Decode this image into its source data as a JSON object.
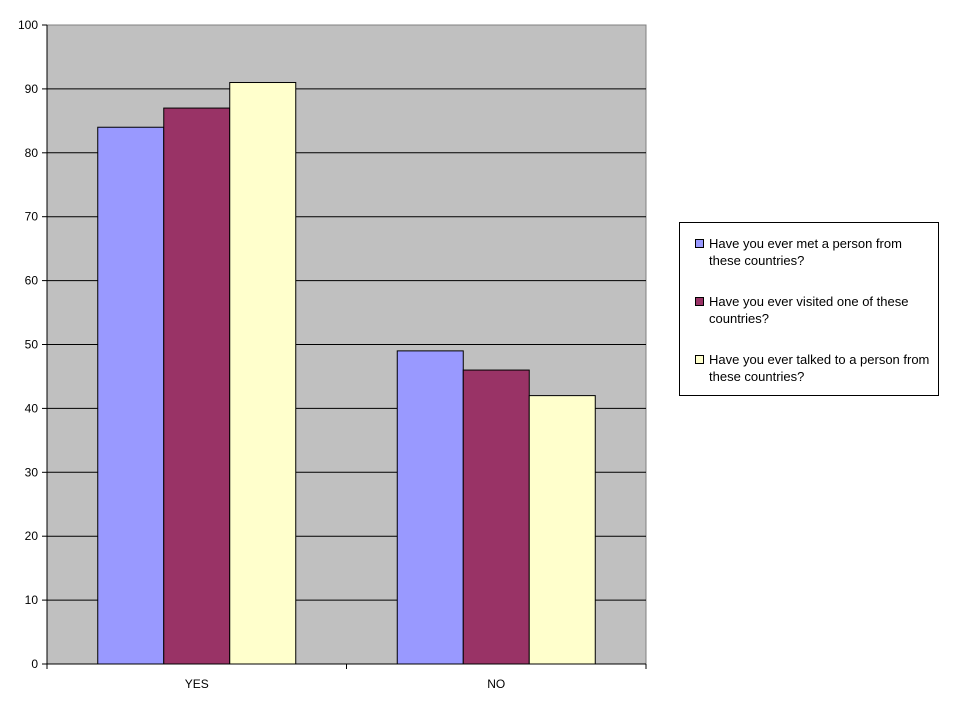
{
  "chart_data": {
    "type": "bar",
    "title": "",
    "xlabel": "",
    "ylabel": "",
    "categories": [
      "YES",
      "NO"
    ],
    "series": [
      {
        "name": "Have you ever met a person from these countries?",
        "values": [
          84,
          49
        ],
        "color": "#9999ff"
      },
      {
        "name": "Have you ever visited one of these countries?",
        "values": [
          87,
          46
        ],
        "color": "#993366"
      },
      {
        "name": "Have you ever talked to a person from these countries?",
        "values": [
          91,
          42
        ],
        "color": "#ffffcc"
      }
    ],
    "ylim": [
      0,
      100
    ],
    "yticks": [
      0,
      10,
      20,
      30,
      40,
      50,
      60,
      70,
      80,
      90,
      100
    ],
    "grid": true,
    "plot_background": "#c0c0c0",
    "legend_position": "right"
  }
}
